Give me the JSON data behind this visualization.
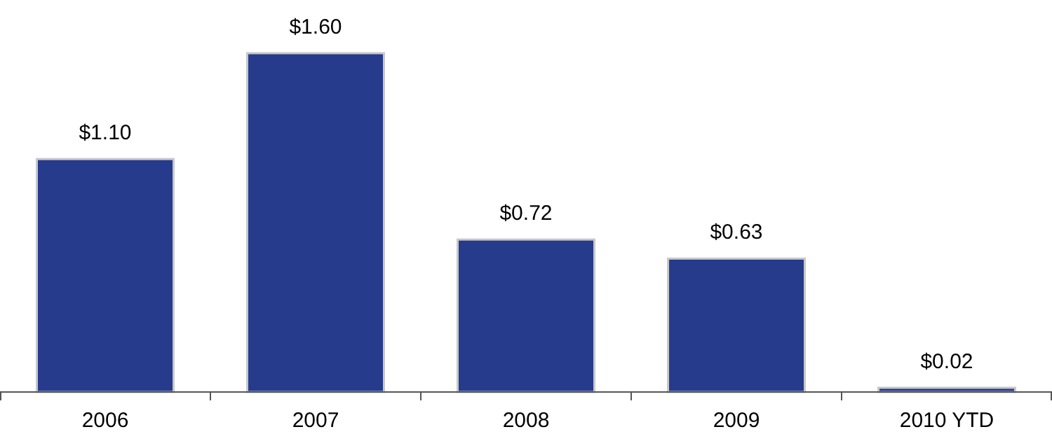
{
  "chart_data": {
    "type": "bar",
    "categories": [
      "2006",
      "2007",
      "2008",
      "2009",
      "2010 YTD"
    ],
    "values": [
      1.1,
      1.6,
      0.72,
      0.63,
      0.02
    ],
    "value_labels": [
      "$1.10",
      "$1.60",
      "$0.72",
      "$0.63",
      "$0.02"
    ],
    "color": "#273b8c"
  }
}
